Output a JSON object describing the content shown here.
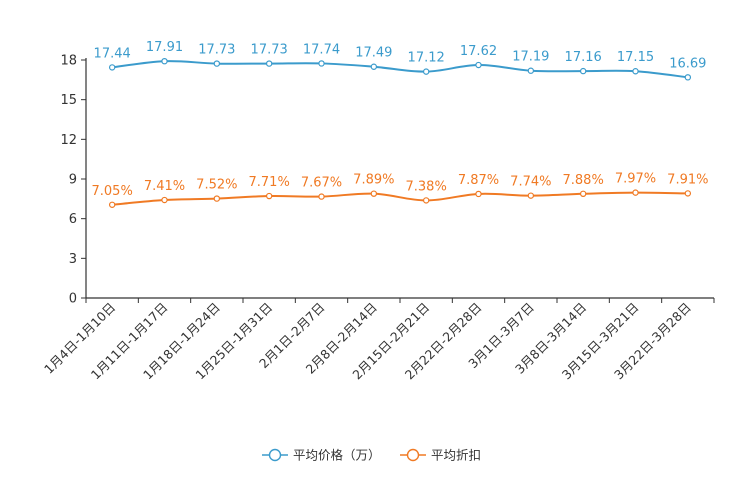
{
  "chart_data": {
    "type": "line",
    "title": "",
    "xlabel": "",
    "ylabel": "",
    "ylim": [
      0,
      18
    ],
    "yticks": [
      0,
      3,
      6,
      9,
      12,
      15,
      18
    ],
    "grid": false,
    "legend_position": "bottom-center",
    "categories": [
      "1月4日-1月10日",
      "1月11日-1月17日",
      "1月18日-1月24日",
      "1月25日-1月31日",
      "2月1日-2月7日",
      "2月8日-2月14日",
      "2月15日-2月21日",
      "2月22日-2月28日",
      "3月1日-3月7日",
      "3月8日-3月14日",
      "3月15日-3月21日",
      "3月22日-3月28日"
    ],
    "series": [
      {
        "name": "平均价格（万）",
        "color": "#3b9bcc",
        "values": [
          17.44,
          17.91,
          17.73,
          17.73,
          17.74,
          17.49,
          17.12,
          17.62,
          17.19,
          17.16,
          17.15,
          16.69
        ],
        "labels": [
          "17.44",
          "17.91",
          "17.73",
          "17.73",
          "17.74",
          "17.49",
          "17.12",
          "17.62",
          "17.19",
          "17.16",
          "17.15",
          "16.69"
        ]
      },
      {
        "name": "平均折扣",
        "color": "#f07a24",
        "values": [
          7.05,
          7.41,
          7.52,
          7.71,
          7.67,
          7.89,
          7.38,
          7.87,
          7.74,
          7.88,
          7.97,
          7.91
        ],
        "labels": [
          "7.05%",
          "7.41%",
          "7.52%",
          "7.71%",
          "7.67%",
          "7.89%",
          "7.38%",
          "7.87%",
          "7.74%",
          "7.88%",
          "7.97%",
          "7.91%"
        ]
      }
    ]
  }
}
